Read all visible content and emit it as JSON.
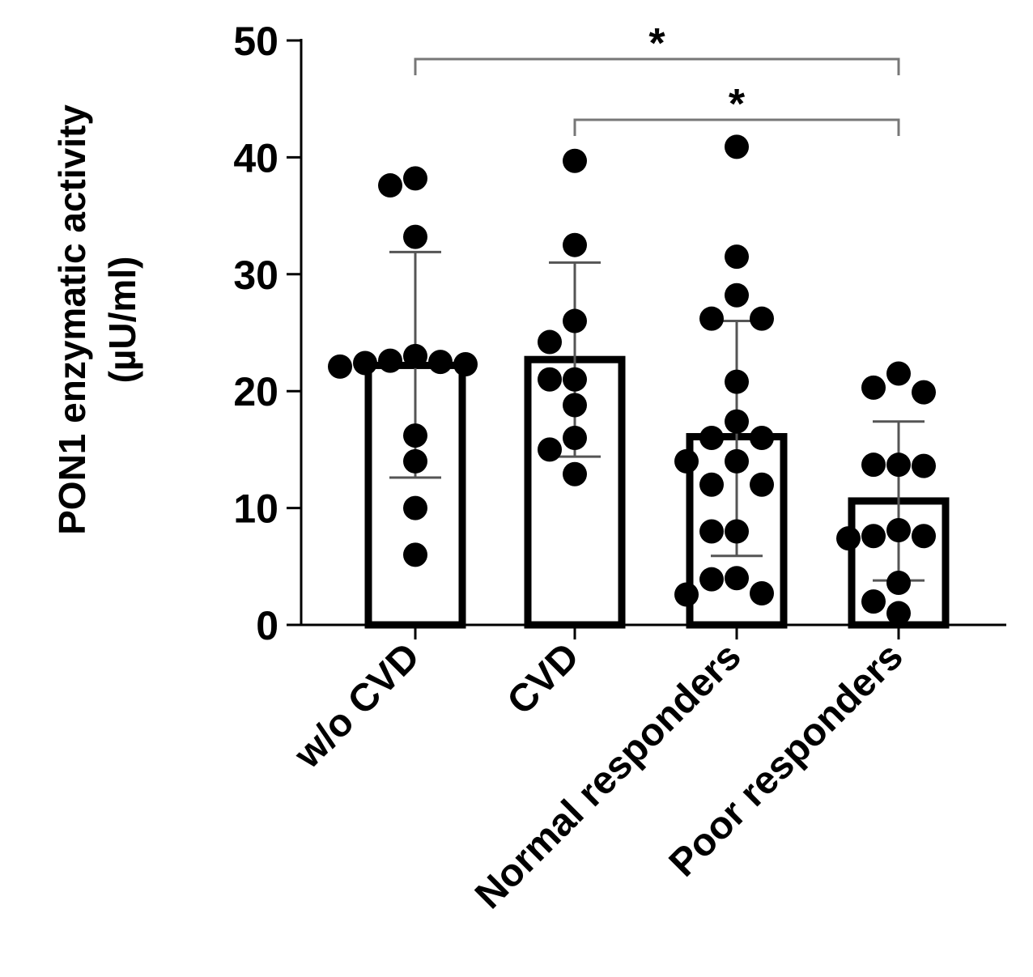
{
  "chart_data": {
    "type": "bar",
    "title": "",
    "ylabel": [
      "PON1 enzymatic activity",
      "(µU/ml)"
    ],
    "xlabel": "",
    "ylim": [
      0,
      50
    ],
    "yticks": [
      0,
      10,
      20,
      30,
      40,
      50
    ],
    "categories": [
      "w/o CVD",
      "CVD",
      "Normal responders",
      "Poor responders"
    ],
    "bars": [
      {
        "category": "w/o CVD",
        "mean": 22.2,
        "sd_low": 12.6,
        "sd_high": 31.9,
        "points": [
          38.2,
          37.6,
          33.2,
          23.0,
          22.6,
          22.3,
          22.1,
          22.4,
          22.5,
          16.2,
          14.0,
          10.0,
          6.0
        ]
      },
      {
        "category": "CVD",
        "mean": 22.7,
        "sd_low": 14.4,
        "sd_high": 31.0,
        "points": [
          39.7,
          32.5,
          26.0,
          24.2,
          21.0,
          21.0,
          18.8,
          16.0,
          15.0,
          12.9
        ]
      },
      {
        "category": "Normal responders",
        "mean": 16.1,
        "sd_low": 5.9,
        "sd_high": 26.0,
        "points": [
          40.9,
          31.5,
          28.2,
          26.2,
          26.2,
          20.8,
          17.4,
          16.0,
          16.0,
          14.0,
          14.0,
          12.0,
          12.0,
          8.0,
          8.0,
          4.0,
          3.9,
          2.6,
          2.7
        ]
      },
      {
        "category": "Poor responders",
        "mean": 10.6,
        "sd_low": 3.8,
        "sd_high": 17.4,
        "points": [
          21.5,
          20.3,
          19.9,
          13.7,
          13.6,
          13.7,
          8.1,
          7.6,
          7.6,
          7.4,
          3.6,
          2.0,
          1.0
        ]
      }
    ],
    "significance": [
      {
        "from": "w/o CVD",
        "to": "Poor responders",
        "label": "*"
      },
      {
        "from": "CVD",
        "to": "Poor responders",
        "label": "*"
      }
    ]
  }
}
